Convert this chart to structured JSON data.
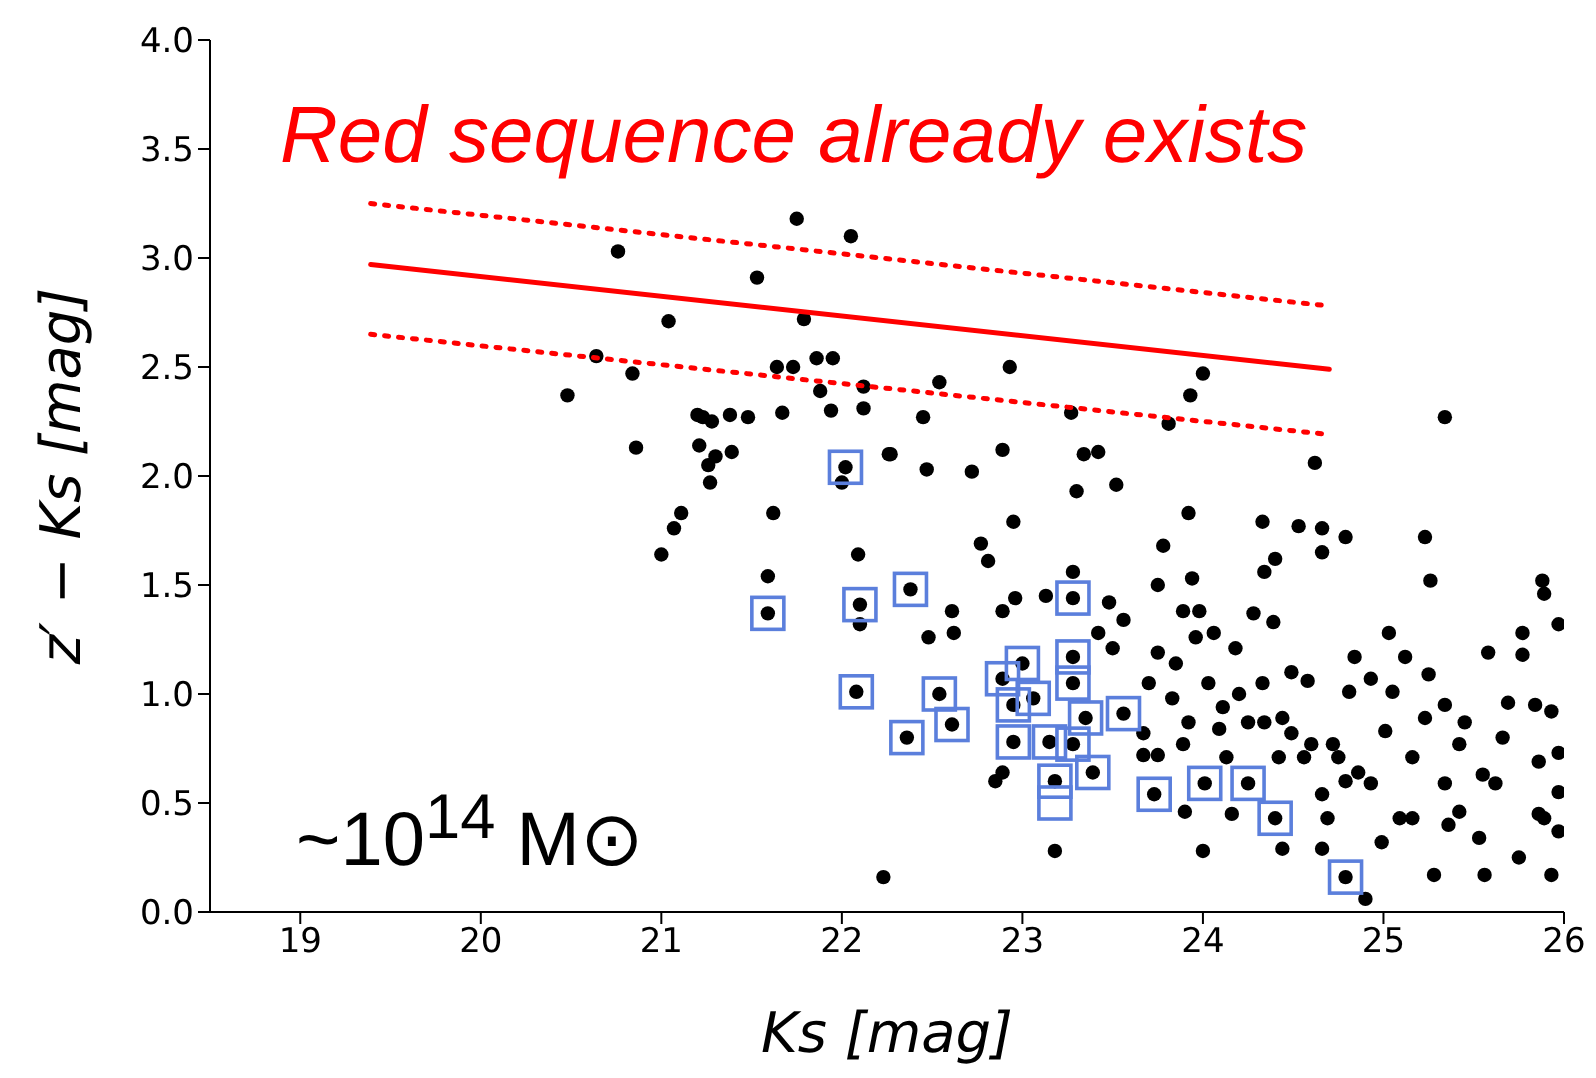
{
  "chart_data": {
    "type": "scatter",
    "xlabel": "Ks [mag]",
    "ylabel": "z′ − Ks [mag]",
    "xlim": [
      18.5,
      26
    ],
    "xticks": [
      19,
      20,
      21,
      22,
      23,
      24,
      25,
      26
    ],
    "ylim": [
      0,
      4
    ],
    "yticks": [
      {
        "value": 0,
        "label": "0.0"
      },
      0.5,
      {
        "value": 1,
        "label": "1.0"
      },
      1.5,
      {
        "value": 2,
        "label": "2.0"
      },
      2.5,
      {
        "value": 3,
        "label": "3.0"
      },
      3.5,
      {
        "value": 4,
        "label": "4.0"
      }
    ],
    "grid": false,
    "legend": false,
    "annotations": [
      "Red sequence already exists",
      "~10$^{14}$ M⊙"
    ],
    "series": [
      {
        "color": "#000000",
        "marker": "circle",
        "x": [
          20.48,
          20.64,
          20.76,
          20.84,
          20.86,
          21.04,
          21.0,
          21.07,
          21.11,
          21.2,
          21.23,
          21.28,
          21.21,
          21.3,
          21.26,
          21.27,
          21.38,
          21.39,
          21.48,
          21.53,
          21.59,
          21.59,
          21.62,
          21.64,
          21.67,
          21.73,
          21.75,
          21.79,
          21.86,
          21.88,
          21.94,
          21.95,
          22.02,
          22.0,
          22.05,
          22.12,
          22.12,
          22.09,
          22.1,
          22.1,
          22.08,
          22.23,
          22.27,
          22.93,
          22.54,
          22.45,
          22.26,
          22.47,
          22.72,
          22.89,
          23.34,
          23.42,
          23.3,
          23.52,
          23.27,
          23.81,
          23.93,
          24.0,
          24.62,
          25.34,
          22.95,
          23.92,
          24.33,
          24.53,
          24.66,
          24.79,
          24.66,
          25.23,
          23.78,
          24.4,
          24.34,
          22.77,
          22.81,
          23.94,
          23.75,
          25.26,
          25.88,
          25.89,
          23.28,
          22.61,
          22.62,
          22.48,
          22.89,
          22.96,
          23.13,
          23.48,
          23.56,
          23.5,
          23.42,
          23.75,
          23.85,
          23.89,
          23.98,
          23.96,
          24.06,
          24.18,
          24.28,
          24.39,
          23.7,
          23.83,
          24.03,
          24.11,
          24.09,
          24.2,
          24.33,
          24.44,
          24.49,
          24.58,
          24.49,
          24.6,
          24.72,
          24.84,
          24.93,
          25.05,
          24.81,
          25.12,
          25.03,
          25.25,
          25.34,
          25.45,
          25.58,
          25.77,
          25.77,
          25.69,
          25.84,
          25.97,
          25.66,
          25.86,
          25.55,
          25.34,
          25.16,
          25.16,
          25.36,
          25.53,
          25.75,
          25.89,
          25.93,
          25.56,
          25.28,
          24.99,
          24.66,
          24.9,
          24.44,
          24.69,
          24.66,
          24.93,
          24.79,
          24.56,
          24.42,
          24.0,
          23.9,
          24.16,
          23.92,
          23.89,
          23.67,
          23.67,
          24.13,
          23.18,
          22.85,
          22.89,
          23.75,
          24.25,
          24.34,
          24.75,
          24.86,
          25.09,
          25.42,
          25.62,
          25.97,
          25.97,
          25.86,
          25.97,
          25.93,
          25.42,
          25.23,
          25.01,
          22.38,
          23.28,
          22.54,
          22.61,
          22.36,
          22.95,
          23.0,
          22.89,
          22.95,
          23.28,
          23.28,
          23.56,
          23.35,
          23.15,
          23.28,
          23.18,
          23.39,
          23.73,
          24.01,
          24.25,
          24.4,
          24.79,
          23.06
        ],
        "values": [
          2.37,
          2.55,
          3.03,
          2.47,
          2.13,
          2.71,
          1.64,
          1.76,
          1.83,
          2.28,
          2.27,
          2.25,
          2.14,
          2.09,
          2.05,
          1.97,
          2.28,
          2.11,
          2.27,
          2.91,
          1.54,
          1.37,
          1.83,
          2.5,
          2.29,
          2.5,
          3.18,
          2.72,
          2.54,
          2.39,
          2.3,
          2.54,
          2.04,
          1.97,
          3.1,
          2.41,
          2.31,
          1.64,
          1.41,
          1.32,
          1.01,
          0.16,
          2.1,
          2.5,
          2.43,
          2.27,
          2.1,
          2.03,
          2.02,
          2.12,
          2.1,
          2.11,
          1.93,
          1.96,
          2.29,
          2.24,
          2.37,
          2.47,
          2.06,
          2.27,
          1.79,
          1.83,
          1.79,
          1.77,
          1.76,
          1.72,
          1.65,
          1.72,
          1.68,
          1.62,
          1.56,
          1.69,
          1.61,
          1.53,
          1.5,
          1.52,
          1.52,
          1.46,
          1.56,
          1.38,
          1.28,
          1.26,
          1.38,
          1.44,
          1.45,
          1.42,
          1.34,
          1.21,
          1.28,
          1.19,
          1.14,
          1.38,
          1.38,
          1.26,
          1.28,
          1.21,
          1.37,
          1.33,
          1.05,
          0.98,
          1.05,
          0.94,
          0.84,
          1.0,
          1.05,
          0.89,
          1.1,
          1.06,
          0.82,
          0.77,
          0.77,
          1.17,
          1.07,
          1.01,
          1.01,
          1.17,
          1.28,
          1.09,
          0.95,
          0.87,
          1.19,
          1.28,
          1.18,
          0.96,
          0.95,
          1.32,
          0.8,
          0.69,
          0.63,
          0.59,
          0.71,
          0.43,
          0.4,
          0.34,
          0.25,
          0.43,
          0.17,
          0.17,
          0.17,
          0.32,
          0.29,
          0.06,
          0.29,
          0.43,
          0.54,
          0.59,
          0.6,
          0.71,
          0.71,
          0.28,
          0.46,
          0.45,
          0.87,
          0.77,
          0.82,
          0.72,
          0.71,
          0.28,
          0.6,
          0.64,
          0.72,
          0.87,
          0.87,
          0.71,
          0.64,
          0.43,
          0.46,
          0.59,
          0.55,
          0.37,
          0.45,
          0.73,
          0.92,
          0.77,
          0.89,
          0.83,
          1.48,
          1.44,
          1.0,
          0.86,
          0.8,
          0.95,
          1.14,
          1.07,
          0.78,
          1.17,
          1.05,
          0.91,
          0.89,
          0.78,
          0.77,
          0.6,
          0.64,
          0.54,
          0.59,
          0.59,
          0.43,
          0.16,
          0.98
        ]
      },
      {
        "color": "#5b7fdc",
        "marker": "square",
        "x": [
          21.59,
          22.02,
          22.1,
          22.08,
          22.38,
          23.28,
          22.54,
          22.61,
          22.36,
          22.95,
          23.0,
          22.89,
          22.95,
          23.28,
          23.28,
          23.56,
          23.35,
          23.15,
          23.28,
          23.18,
          23.18,
          23.39,
          23.73,
          24.01,
          24.25,
          24.4,
          24.79,
          23.06
        ],
        "values": [
          1.37,
          2.04,
          1.41,
          1.01,
          1.48,
          1.44,
          1.0,
          0.86,
          0.8,
          0.95,
          1.14,
          1.07,
          0.78,
          1.17,
          1.05,
          0.91,
          0.89,
          0.78,
          0.77,
          0.6,
          0.5,
          0.64,
          0.54,
          0.59,
          0.59,
          0.43,
          0.16,
          0.98
        ]
      },
      {
        "type": "line",
        "color": "#ff0000",
        "line_style": "solid",
        "x": [
          19.39,
          24.7
        ],
        "values": [
          2.97,
          2.49
        ]
      },
      {
        "type": "line",
        "color": "#ff0000",
        "line_style": "dotted",
        "x": [
          19.39,
          24.7
        ],
        "values": [
          3.25,
          2.78
        ]
      },
      {
        "type": "line",
        "color": "#ff0000",
        "line_style": "dotted",
        "x": [
          19.39,
          24.7
        ],
        "values": [
          2.65,
          2.19
        ]
      }
    ]
  }
}
